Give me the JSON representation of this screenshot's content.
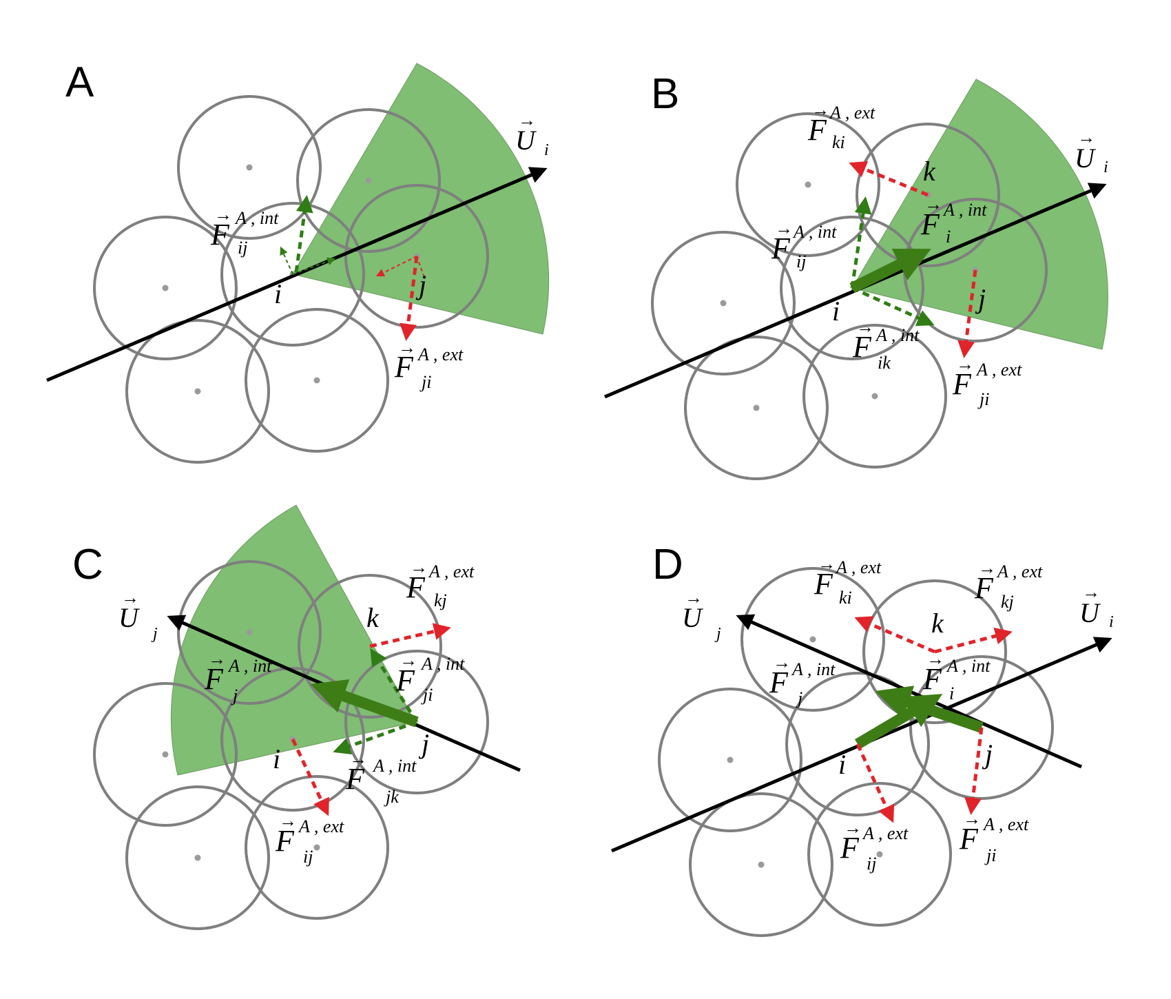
{
  "panels": [
    {
      "letter": "A",
      "labels": {
        "i": "i",
        "j": "j",
        "U_i": {
          "base": "U",
          "sub": "i"
        },
        "F_ij_int": {
          "base": "F",
          "sup": "A , int",
          "sub": "ij"
        },
        "F_ji_ext": {
          "base": "F",
          "sup": "A , ext",
          "sub": "ji"
        }
      }
    },
    {
      "letter": "B",
      "labels": {
        "i": "i",
        "j": "j",
        "k": "k",
        "U_i": {
          "base": "U",
          "sub": "i"
        },
        "F_ki_ext": {
          "base": "F",
          "sup": "A , ext",
          "sub": "ki"
        },
        "F_i_int": {
          "base": "F",
          "sup": "A , int",
          "sub": "i"
        },
        "F_ij_int": {
          "base": "F",
          "sup": "A , int",
          "sub": "ij"
        },
        "F_ik_int": {
          "base": "F",
          "sup": "A , int",
          "sub": "ik"
        },
        "F_ji_ext": {
          "base": "F",
          "sup": "A , ext",
          "sub": "ji"
        }
      }
    },
    {
      "letter": "C",
      "labels": {
        "i": "i",
        "j": "j",
        "k": "k",
        "U_j": {
          "base": "U",
          "sub": "j"
        },
        "F_kj_ext": {
          "base": "F",
          "sup": "A , ext",
          "sub": "kj"
        },
        "F_j_int": {
          "base": "F",
          "sup": "A , int",
          "sub": "j"
        },
        "F_ji_int": {
          "base": "F",
          "sup": "A , int",
          "sub": "ji"
        },
        "F_jk_int": {
          "base": "F",
          "sup": "A , int",
          "sub": "jk"
        },
        "F_ij_ext": {
          "base": "F",
          "sup": "A , ext",
          "sub": "ij"
        }
      }
    },
    {
      "letter": "D",
      "labels": {
        "i": "i",
        "j": "j",
        "k": "k",
        "U_i": {
          "base": "U",
          "sub": "i"
        },
        "U_j": {
          "base": "U",
          "sub": "j"
        },
        "F_ki_ext": {
          "base": "F",
          "sup": "A , ext",
          "sub": "ki"
        },
        "F_kj_ext": {
          "base": "F",
          "sup": "A , ext",
          "sub": "kj"
        },
        "F_j_int": {
          "base": "F",
          "sup": "A , int",
          "sub": "j"
        },
        "F_i_int": {
          "base": "F",
          "sup": "A , int",
          "sub": "i"
        },
        "F_ij_ext": {
          "base": "F",
          "sup": "A , ext",
          "sub": "ij"
        },
        "F_ji_ext": {
          "base": "F",
          "sup": "A , ext",
          "sub": "ji"
        }
      }
    }
  ],
  "colors": {
    "sector": "#4ea53d",
    "internal_force": "#2f7d14",
    "external_force": "#e0242a",
    "cell_outline": "#7f7f7f",
    "axis": "#000000"
  },
  "icons": {
    "cell": "circle-outline",
    "arrow": "vector-arrow"
  }
}
